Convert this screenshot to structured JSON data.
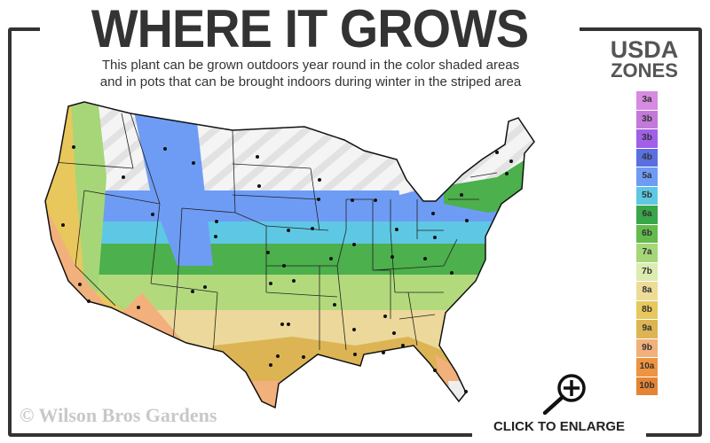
{
  "header": {
    "title": "WHERE IT GROWS",
    "subtitle_line1": "This plant can be grown outdoors year round in the color shaded areas",
    "subtitle_line2": "and in pots that can be brought indoors during winter in the striped area"
  },
  "legend": {
    "title_line1": "USDA",
    "title_line2": "ZONES",
    "zones": [
      {
        "label": "3a",
        "color": "#d68be0"
      },
      {
        "label": "3b",
        "color": "#c27ad8"
      },
      {
        "label": "3b",
        "color": "#a25fe8"
      },
      {
        "label": "4b",
        "color": "#5a6fe0"
      },
      {
        "label": "5a",
        "color": "#6e9cf4"
      },
      {
        "label": "5b",
        "color": "#5ec8e4"
      },
      {
        "label": "6a",
        "color": "#3aa64a"
      },
      {
        "label": "6b",
        "color": "#64bb4c"
      },
      {
        "label": "7a",
        "color": "#a6d678"
      },
      {
        "label": "7b",
        "color": "#dcebb0"
      },
      {
        "label": "8a",
        "color": "#ecdc98"
      },
      {
        "label": "8b",
        "color": "#e8c85c"
      },
      {
        "label": "9a",
        "color": "#dcb454"
      },
      {
        "label": "9b",
        "color": "#f2b07c"
      },
      {
        "label": "10a",
        "color": "#ee9440"
      },
      {
        "label": "10b",
        "color": "#e48434"
      }
    ]
  },
  "watermark": "© Wilson Bros Gardens",
  "enlarge": {
    "label": "CLICK TO ENLARGE",
    "icon": "magnifier-plus-icon"
  }
}
